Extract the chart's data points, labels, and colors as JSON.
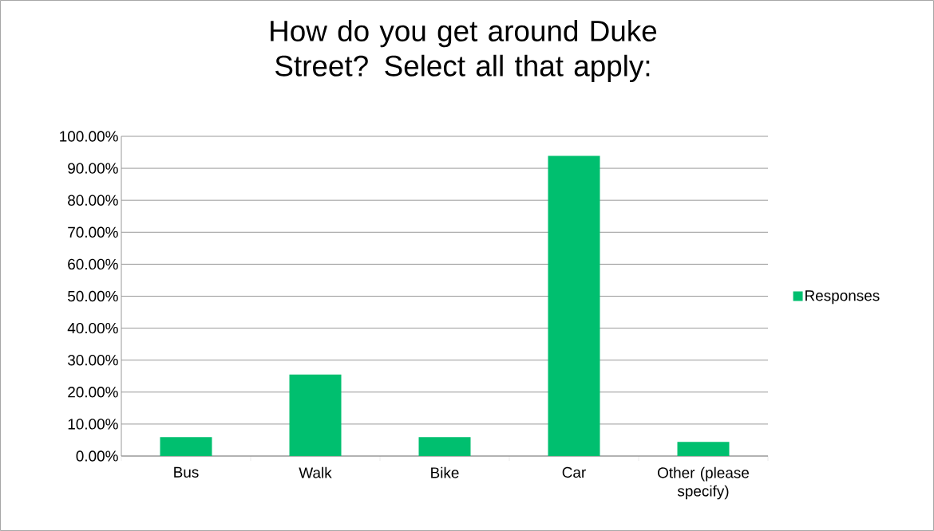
{
  "chart_data": {
    "type": "bar",
    "title": "How do you get around Duke Street? Select all that apply:",
    "categories": [
      "Bus",
      "Walk",
      "Bike",
      "Car",
      "Other (please specify)"
    ],
    "series": [
      {
        "name": "Responses",
        "color": "#00bf6f",
        "values": [
          5.9,
          25.5,
          5.9,
          93.9,
          4.4
        ]
      }
    ],
    "ylim": [
      0,
      100
    ],
    "yticks": [
      {
        "value": 0,
        "label": "0.00%"
      },
      {
        "value": 10,
        "label": "10.00%"
      },
      {
        "value": 20,
        "label": "20.00%"
      },
      {
        "value": 30,
        "label": "30.00%"
      },
      {
        "value": 40,
        "label": "40.00%"
      },
      {
        "value": 50,
        "label": "50.00%"
      },
      {
        "value": 60,
        "label": "60.00%"
      },
      {
        "value": 70,
        "label": "70.00%"
      },
      {
        "value": 80,
        "label": "80.00%"
      },
      {
        "value": 90,
        "label": "90.00%"
      },
      {
        "value": 100,
        "label": "100.00%"
      }
    ],
    "grid": "y",
    "legend": "right"
  }
}
